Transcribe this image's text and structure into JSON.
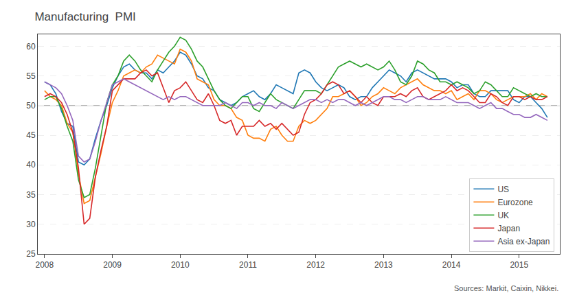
{
  "chart_data": {
    "type": "line",
    "title": "Manufacturing  PMI",
    "source": "Sources: Markit, Caixin, Nikkei.",
    "x": [
      2008,
      2008.0833333333333,
      2008.1666666666667,
      2008.25,
      2008.3333333333333,
      2008.4166666666667,
      2008.5,
      2008.5833333333333,
      2008.6666666666667,
      2008.75,
      2008.8333333333333,
      2008.9166666666667,
      2009,
      2009.0833333333333,
      2009.1666666666667,
      2009.25,
      2009.3333333333333,
      2009.4166666666667,
      2009.5,
      2009.5833333333333,
      2009.6666666666667,
      2009.75,
      2009.8333333333333,
      2009.9166666666667,
      2010,
      2010.0833333333333,
      2010.1666666666667,
      2010.25,
      2010.3333333333333,
      2010.4166666666667,
      2010.5,
      2010.5833333333333,
      2010.6666666666667,
      2010.75,
      2010.8333333333333,
      2010.9166666666667,
      2011,
      2011.0833333333333,
      2011.1666666666667,
      2011.25,
      2011.3333333333333,
      2011.4166666666667,
      2011.5,
      2011.5833333333333,
      2011.6666666666667,
      2011.75,
      2011.8333333333333,
      2011.9166666666667,
      2012,
      2012.0833333333333,
      2012.1666666666667,
      2012.25,
      2012.3333333333333,
      2012.4166666666667,
      2012.5,
      2012.5833333333333,
      2012.6666666666667,
      2012.75,
      2012.8333333333333,
      2012.9166666666667,
      2013,
      2013.0833333333333,
      2013.1666666666667,
      2013.25,
      2013.3333333333333,
      2013.4166666666667,
      2013.5,
      2013.5833333333333,
      2013.6666666666667,
      2013.75,
      2013.8333333333333,
      2013.9166666666667,
      2014,
      2014.0833333333333,
      2014.1666666666667,
      2014.25,
      2014.3333333333333,
      2014.4166666666667,
      2014.5,
      2014.5833333333333,
      2014.6666666666667,
      2014.75,
      2014.8333333333333,
      2014.9166666666667,
      2015,
      2015.0833333333333,
      2015.1666666666667,
      2015.25,
      2015.3333333333333,
      2015.4166666666667
    ],
    "series": [
      {
        "name": "US",
        "values": [
          54.0,
          53.5,
          52.0,
          49.0,
          47.0,
          46.5,
          40.5,
          40.0,
          41.0,
          44.5,
          47.5,
          50.0,
          53.0,
          55.0,
          56.5,
          57.0,
          56.0,
          55.5,
          55.5,
          54.5,
          56.0,
          55.5,
          56.5,
          57.5,
          59.0,
          58.5,
          57.0,
          55.0,
          54.5,
          53.0,
          52.5,
          51.0,
          50.5,
          50.0,
          50.5,
          51.5,
          52.0,
          52.5,
          51.5,
          51.0,
          52.0,
          53.5,
          53.0,
          52.5,
          52.0,
          55.5,
          56.0,
          55.5,
          54.0,
          53.0,
          52.5,
          53.0,
          53.5,
          53.0,
          51.5,
          51.0,
          51.5,
          51.5,
          53.0,
          54.0,
          55.0,
          56.0,
          55.5,
          55.0,
          54.0,
          55.5,
          56.0,
          55.5,
          55.0,
          54.5,
          54.5,
          54.5,
          54.0,
          53.0,
          53.5,
          53.5,
          52.0,
          51.5,
          51.5,
          52.5,
          52.5,
          52.5,
          52.5,
          51.0,
          50.5,
          51.5,
          51.5,
          50.5,
          49.5,
          48.0
        ]
      },
      {
        "name": "Eurozone",
        "values": [
          52.5,
          51.5,
          51.0,
          50.0,
          47.0,
          45.5,
          38.5,
          33.5,
          34.0,
          38.0,
          42.0,
          46.5,
          50.5,
          52.5,
          55.0,
          55.5,
          56.0,
          55.5,
          56.5,
          57.0,
          58.5,
          58.0,
          57.5,
          57.0,
          59.5,
          59.0,
          57.5,
          54.5,
          54.0,
          53.5,
          51.0,
          50.0,
          50.0,
          49.5,
          48.0,
          47.5,
          45.0,
          44.5,
          44.5,
          44.0,
          46.0,
          46.5,
          45.0,
          44.0,
          44.0,
          46.5,
          47.5,
          47.0,
          47.5,
          48.5,
          49.5,
          51.5,
          51.5,
          52.0,
          52.5,
          51.5,
          50.0,
          50.5,
          51.5,
          52.0,
          53.0,
          52.5,
          52.0,
          53.0,
          53.5,
          54.0,
          54.5,
          53.5,
          53.0,
          52.5,
          52.5,
          52.0,
          52.5,
          51.0,
          51.5,
          52.0,
          51.0,
          52.5,
          52.5,
          52.0,
          51.0,
          50.5,
          51.0,
          51.5,
          51.5,
          51.5,
          52.0,
          51.0,
          52.0,
          51.5
        ]
      },
      {
        "name": "UK",
        "values": [
          51.0,
          51.5,
          51.5,
          49.5,
          46.5,
          44.0,
          37.5,
          34.5,
          35.0,
          39.5,
          45.0,
          50.5,
          53.5,
          55.0,
          57.5,
          58.5,
          57.5,
          56.0,
          55.0,
          54.0,
          56.0,
          57.5,
          59.0,
          60.0,
          61.5,
          61.0,
          59.5,
          57.5,
          56.5,
          54.5,
          52.5,
          51.0,
          50.0,
          49.5,
          50.5,
          51.5,
          51.5,
          49.5,
          49.0,
          50.5,
          52.0,
          51.0,
          50.5,
          50.0,
          49.5,
          51.0,
          52.5,
          52.5,
          52.5,
          52.0,
          53.5,
          55.0,
          56.5,
          57.0,
          57.5,
          57.0,
          56.5,
          57.0,
          56.5,
          56.0,
          56.5,
          57.5,
          56.0,
          54.0,
          53.5,
          55.0,
          57.5,
          57.0,
          56.0,
          55.5,
          54.0,
          54.0,
          53.5,
          54.0,
          53.5,
          53.0,
          52.0,
          52.5,
          54.0,
          53.5,
          52.5,
          51.5,
          51.5,
          53.0,
          52.5,
          52.0,
          51.5,
          52.0,
          51.5,
          51.5
        ]
      },
      {
        "name": "Japan",
        "values": [
          51.5,
          52.0,
          51.5,
          50.5,
          48.5,
          45.5,
          39.5,
          30.0,
          31.0,
          38.0,
          42.5,
          46.5,
          52.5,
          53.5,
          54.5,
          54.5,
          54.5,
          55.5,
          56.0,
          55.0,
          55.5,
          53.0,
          50.5,
          52.5,
          53.0,
          54.0,
          52.5,
          51.0,
          50.5,
          52.0,
          50.0,
          47.5,
          47.0,
          47.5,
          45.0,
          46.5,
          46.5,
          46.5,
          47.5,
          46.5,
          47.0,
          46.0,
          47.0,
          46.0,
          45.0,
          45.5,
          48.5,
          50.5,
          51.0,
          52.0,
          53.5,
          54.0,
          53.5,
          52.0,
          52.5,
          51.5,
          50.5,
          51.5,
          50.5,
          50.0,
          51.5,
          51.5,
          51.5,
          52.0,
          51.5,
          52.5,
          53.0,
          51.5,
          51.0,
          51.5,
          52.0,
          52.5,
          53.5,
          52.5,
          53.0,
          52.5,
          51.5,
          50.5,
          50.5,
          52.0,
          51.5,
          50.5,
          50.0,
          51.5,
          51.5,
          51.0,
          51.5,
          51.0,
          51.0,
          51.5
        ]
      },
      {
        "name": "Asia ex-Japan",
        "values": [
          54.0,
          53.5,
          53.0,
          52.0,
          50.0,
          47.5,
          41.5,
          40.5,
          41.0,
          44.0,
          47.5,
          50.5,
          53.5,
          54.0,
          54.5,
          54.0,
          53.5,
          53.0,
          52.5,
          52.0,
          51.5,
          51.0,
          51.5,
          51.0,
          51.5,
          51.5,
          51.0,
          50.5,
          50.0,
          50.0,
          50.0,
          50.0,
          50.5,
          50.0,
          49.5,
          50.5,
          50.5,
          50.0,
          50.5,
          50.0,
          50.0,
          49.5,
          50.5,
          50.0,
          49.5,
          50.0,
          50.5,
          51.0,
          51.0,
          50.5,
          51.0,
          50.5,
          51.0,
          51.0,
          50.5,
          50.0,
          50.5,
          50.0,
          50.5,
          51.0,
          51.5,
          51.5,
          51.0,
          51.0,
          50.5,
          51.0,
          51.5,
          51.5,
          51.0,
          51.0,
          51.0,
          51.5,
          51.0,
          50.5,
          50.5,
          50.5,
          50.0,
          49.5,
          50.0,
          50.5,
          49.5,
          49.5,
          49.0,
          48.5,
          48.5,
          48.0,
          48.0,
          48.5,
          48.0,
          47.5
        ]
      }
    ],
    "xlim": [
      2007.9,
      2015.6
    ],
    "xticks": [
      2008,
      2009,
      2010,
      2011,
      2012,
      2013,
      2014,
      2015
    ],
    "ylim": [
      25,
      62
    ],
    "yticks": [
      25,
      30,
      35,
      40,
      45,
      50,
      55,
      60
    ],
    "grid": "y",
    "legend": "lower right",
    "reference_lines": [
      {
        "value": 50,
        "color": "#999999"
      }
    ]
  }
}
